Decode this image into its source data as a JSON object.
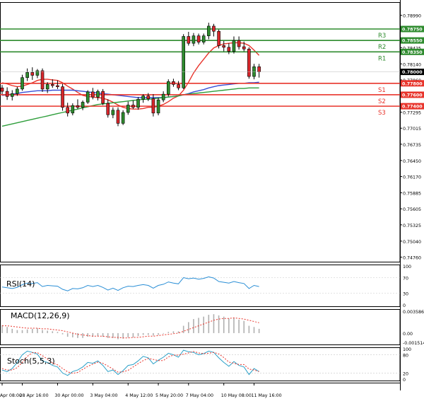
{
  "chart_data": {
    "type": "candlestick",
    "price_axis": {
      "ticks": [
        "0.78990",
        "0.78565",
        "0.78425",
        "0.78140",
        "0.77860",
        "0.77580",
        "0.77295",
        "0.77015",
        "0.76735",
        "0.76450",
        "0.76170",
        "0.75885",
        "0.75605",
        "0.75325",
        "0.75040",
        "0.74760"
      ],
      "ylim": [
        0.7468,
        0.7922
      ]
    },
    "time_axis": {
      "labels": [
        "Apr 08:00",
        "28 Apr 16:00",
        "30 Apr 00:00",
        "3 May 04:00",
        "4 May 12:00",
        "5 May 20:00",
        "7 May 04:00",
        "10 May 08:00",
        "11 May 16:00"
      ]
    },
    "levels": [
      {
        "name": "R3",
        "value": "0.78750",
        "price": 0.7875,
        "color": "#2e8b2e"
      },
      {
        "name": "R2",
        "value": "0.78550",
        "price": 0.7855,
        "color": "#2e8b2e"
      },
      {
        "name": "R1",
        "value": "0.78350",
        "price": 0.7835,
        "color": "#2e8b2e"
      },
      {
        "name": "S1",
        "value": "0.77800",
        "price": 0.778,
        "color": "#e8342b"
      },
      {
        "name": "S2",
        "value": "0.77600",
        "price": 0.776,
        "color": "#e8342b"
      },
      {
        "name": "S3",
        "value": "0.77400",
        "price": 0.774,
        "color": "#e8342b"
      }
    ],
    "current_price": {
      "value": "0.78000",
      "price": 0.78
    },
    "candles": [
      [
        0.7772,
        0.7777,
        0.7761,
        0.7766
      ],
      [
        0.7766,
        0.7773,
        0.7751,
        0.7757
      ],
      [
        0.7757,
        0.7768,
        0.775,
        0.7762
      ],
      [
        0.7762,
        0.7774,
        0.7758,
        0.777
      ],
      [
        0.777,
        0.7795,
        0.7767,
        0.779
      ],
      [
        0.779,
        0.7806,
        0.7784,
        0.7799
      ],
      [
        0.7799,
        0.7808,
        0.7786,
        0.7794
      ],
      [
        0.7794,
        0.7805,
        0.7789,
        0.7802
      ],
      [
        0.7802,
        0.7806,
        0.7765,
        0.777
      ],
      [
        0.777,
        0.7782,
        0.7763,
        0.7778
      ],
      [
        0.7778,
        0.7787,
        0.7772,
        0.7776
      ],
      [
        0.7776,
        0.7785,
        0.777,
        0.7774
      ],
      [
        0.7774,
        0.7779,
        0.7732,
        0.7738
      ],
      [
        0.7738,
        0.7746,
        0.7722,
        0.7728
      ],
      [
        0.7728,
        0.7745,
        0.7724,
        0.7741
      ],
      [
        0.7741,
        0.7752,
        0.7735,
        0.7738
      ],
      [
        0.7738,
        0.775,
        0.7733,
        0.7747
      ],
      [
        0.7747,
        0.7768,
        0.7744,
        0.7765
      ],
      [
        0.7765,
        0.7772,
        0.7752,
        0.7756
      ],
      [
        0.7756,
        0.7769,
        0.775,
        0.7766
      ],
      [
        0.7766,
        0.777,
        0.7742,
        0.7745
      ],
      [
        0.7745,
        0.7752,
        0.772,
        0.7725
      ],
      [
        0.7725,
        0.7738,
        0.7719,
        0.7733
      ],
      [
        0.7733,
        0.7738,
        0.7705,
        0.771
      ],
      [
        0.771,
        0.7733,
        0.7707,
        0.7729
      ],
      [
        0.7729,
        0.7748,
        0.7725,
        0.7742
      ],
      [
        0.7742,
        0.775,
        0.7735,
        0.7738
      ],
      [
        0.7738,
        0.7756,
        0.7734,
        0.7752
      ],
      [
        0.7752,
        0.7761,
        0.7746,
        0.7758
      ],
      [
        0.7758,
        0.7763,
        0.7749,
        0.7753
      ],
      [
        0.7753,
        0.7761,
        0.7722,
        0.7728
      ],
      [
        0.7728,
        0.7755,
        0.7724,
        0.7751
      ],
      [
        0.7751,
        0.7766,
        0.7747,
        0.7761
      ],
      [
        0.7761,
        0.7787,
        0.7757,
        0.7783
      ],
      [
        0.7783,
        0.7788,
        0.7774,
        0.7778
      ],
      [
        0.7778,
        0.7784,
        0.7768,
        0.7772
      ],
      [
        0.7772,
        0.7866,
        0.777,
        0.7862
      ],
      [
        0.7862,
        0.787,
        0.7846,
        0.785
      ],
      [
        0.785,
        0.7868,
        0.7845,
        0.7863
      ],
      [
        0.7863,
        0.7867,
        0.7848,
        0.7852
      ],
      [
        0.7852,
        0.7867,
        0.7848,
        0.7863
      ],
      [
        0.7863,
        0.7886,
        0.7857,
        0.788
      ],
      [
        0.788,
        0.7884,
        0.7862,
        0.7871
      ],
      [
        0.7871,
        0.7874,
        0.7841,
        0.7846
      ],
      [
        0.7846,
        0.7854,
        0.7836,
        0.7843
      ],
      [
        0.7843,
        0.785,
        0.7831,
        0.7836
      ],
      [
        0.7836,
        0.7862,
        0.7832,
        0.7855
      ],
      [
        0.7855,
        0.7862,
        0.7839,
        0.7844
      ],
      [
        0.7844,
        0.7853,
        0.7836,
        0.784
      ],
      [
        0.784,
        0.7843,
        0.7788,
        0.7792
      ],
      [
        0.7792,
        0.7814,
        0.7787,
        0.7809
      ],
      [
        0.7809,
        0.7814,
        0.779,
        0.78
      ]
    ],
    "moving_averages": [
      {
        "color": "#e8342b",
        "values": [
          0.7781,
          0.7779,
          0.7776,
          0.7774,
          0.7775,
          0.7778,
          0.7781,
          0.7785,
          0.7787,
          0.7787,
          0.7786,
          0.7785,
          0.7781,
          0.7775,
          0.777,
          0.7764,
          0.7759,
          0.7757,
          0.7756,
          0.7755,
          0.7754,
          0.7751,
          0.7747,
          0.7742,
          0.7738,
          0.7736,
          0.7735,
          0.7735,
          0.7736,
          0.7738,
          0.7738,
          0.774,
          0.7743,
          0.7748,
          0.7754,
          0.7758,
          0.7768,
          0.7782,
          0.7798,
          0.7811,
          0.7822,
          0.7833,
          0.7842,
          0.7846,
          0.7849,
          0.785,
          0.7851,
          0.7851,
          0.785,
          0.7846,
          0.7838,
          0.7829
        ]
      },
      {
        "color": "#3a4fd6",
        "values": [
          0.7759,
          0.776,
          0.7761,
          0.7762,
          0.7764,
          0.7765,
          0.7766,
          0.7767,
          0.7767,
          0.7767,
          0.7768,
          0.7768,
          0.7768,
          0.7768,
          0.7768,
          0.7767,
          0.7766,
          0.7765,
          0.7764,
          0.7763,
          0.7762,
          0.7761,
          0.776,
          0.7759,
          0.7758,
          0.7757,
          0.7756,
          0.7755,
          0.7755,
          0.7755,
          0.7755,
          0.7755,
          0.7755,
          0.7756,
          0.7757,
          0.7758,
          0.776,
          0.7762,
          0.7765,
          0.7767,
          0.7769,
          0.7772,
          0.7774,
          0.7776,
          0.7777,
          0.7778,
          0.7779,
          0.778,
          0.778,
          0.7781,
          0.7781,
          0.7782
        ]
      },
      {
        "color": "#2e9e3b",
        "values": [
          0.7705,
          0.7707,
          0.7709,
          0.7711,
          0.7713,
          0.7715,
          0.7717,
          0.7719,
          0.7721,
          0.7723,
          0.7725,
          0.7727,
          0.7729,
          0.7731,
          0.7733,
          0.7735,
          0.7737,
          0.7739,
          0.7741,
          0.7743,
          0.7744,
          0.7745,
          0.7746,
          0.7747,
          0.7748,
          0.7749,
          0.775,
          0.7751,
          0.7752,
          0.7752,
          0.7753,
          0.7754,
          0.7755,
          0.7756,
          0.7757,
          0.7758,
          0.776,
          0.7761,
          0.7762,
          0.7763,
          0.7764,
          0.7765,
          0.7766,
          0.7767,
          0.7768,
          0.7769,
          0.777,
          0.7771,
          0.7771,
          0.7772,
          0.7772,
          0.7772
        ]
      }
    ],
    "rsi": {
      "label": "RSI(14)",
      "ticks": [
        "100",
        "70",
        "30",
        "0"
      ],
      "ylim": [
        0,
        100
      ],
      "color": "#2b8fd6",
      "values": [
        46,
        44,
        42,
        45,
        52,
        56,
        55,
        57,
        47,
        50,
        49,
        48,
        40,
        36,
        42,
        41,
        44,
        50,
        47,
        50,
        45,
        38,
        43,
        37,
        44,
        48,
        47,
        50,
        52,
        50,
        43,
        50,
        53,
        59,
        56,
        54,
        70,
        67,
        69,
        66,
        68,
        72,
        69,
        60,
        58,
        56,
        60,
        57,
        55,
        42,
        50,
        47
      ]
    },
    "macd": {
      "label": "MACD(12,26,9)",
      "ticks": [
        "0.003586",
        "0.00",
        "-0.001514"
      ],
      "ylim": [
        -0.001514,
        0.003586
      ],
      "histogram_color": "#b0b0b0",
      "signal_color": "#e8342b",
      "histogram": [
        0.0013,
        0.001,
        0.0007,
        0.0005,
        0.0005,
        0.0006,
        0.0007,
        0.0008,
        0.0005,
        0.0004,
        0.0003,
        0.0002,
        -0.0002,
        -0.0006,
        -0.0007,
        -0.0008,
        -0.0008,
        -0.0006,
        -0.0006,
        -0.0005,
        -0.0006,
        -0.0008,
        -0.0008,
        -0.001,
        -0.0009,
        -0.0007,
        -0.0007,
        -0.0005,
        -0.0003,
        -0.0003,
        -0.0004,
        -0.0003,
        -0.0001,
        0.0002,
        0.0003,
        0.0003,
        0.0012,
        0.0018,
        0.0023,
        0.0025,
        0.0027,
        0.003,
        0.0031,
        0.0029,
        0.0027,
        0.0024,
        0.0025,
        0.0022,
        0.002,
        0.0012,
        0.001,
        0.0007
      ],
      "signal": [
        0.0012,
        0.0012,
        0.0011,
        0.001,
        0.0009,
        0.0008,
        0.0008,
        0.0008,
        0.0007,
        0.0007,
        0.0006,
        0.0005,
        0.0004,
        0.0002,
        0.0,
        -0.0002,
        -0.0003,
        -0.0004,
        -0.0005,
        -0.0005,
        -0.0005,
        -0.0006,
        -0.0007,
        -0.0007,
        -0.0008,
        -0.0008,
        -0.0007,
        -0.0007,
        -0.0006,
        -0.0005,
        -0.0005,
        -0.0004,
        -0.0003,
        -0.0002,
        -0.0001,
        0.0,
        0.0003,
        0.0006,
        0.0009,
        0.0012,
        0.0015,
        0.0018,
        0.0021,
        0.0023,
        0.0024,
        0.0024,
        0.0025,
        0.0024,
        0.0023,
        0.0021,
        0.0019,
        0.0017
      ]
    },
    "stoch": {
      "label": "Stoch(5,5,3)",
      "ticks": [
        "100",
        "80",
        "20",
        "0"
      ],
      "ylim": [
        0,
        100
      ],
      "main_color": "#2aa0c8",
      "signal_color": "#e8342b",
      "main": [
        30,
        25,
        35,
        55,
        80,
        92,
        88,
        82,
        60,
        55,
        45,
        40,
        20,
        12,
        25,
        30,
        40,
        55,
        52,
        60,
        45,
        25,
        30,
        15,
        28,
        45,
        48,
        60,
        75,
        70,
        50,
        62,
        72,
        85,
        80,
        72,
        95,
        90,
        88,
        80,
        84,
        92,
        88,
        70,
        55,
        42,
        58,
        45,
        40,
        15,
        35,
        25
      ],
      "signal": [
        35,
        30,
        30,
        38,
        55,
        75,
        87,
        87,
        77,
        66,
        53,
        47,
        35,
        24,
        19,
        22,
        32,
        42,
        49,
        56,
        52,
        43,
        33,
        23,
        24,
        29,
        40,
        51,
        61,
        68,
        65,
        61,
        61,
        73,
        79,
        79,
        82,
        86,
        91,
        86,
        84,
        85,
        88,
        83,
        71,
        56,
        52,
        48,
        48,
        33,
        30,
        25
      ]
    }
  }
}
